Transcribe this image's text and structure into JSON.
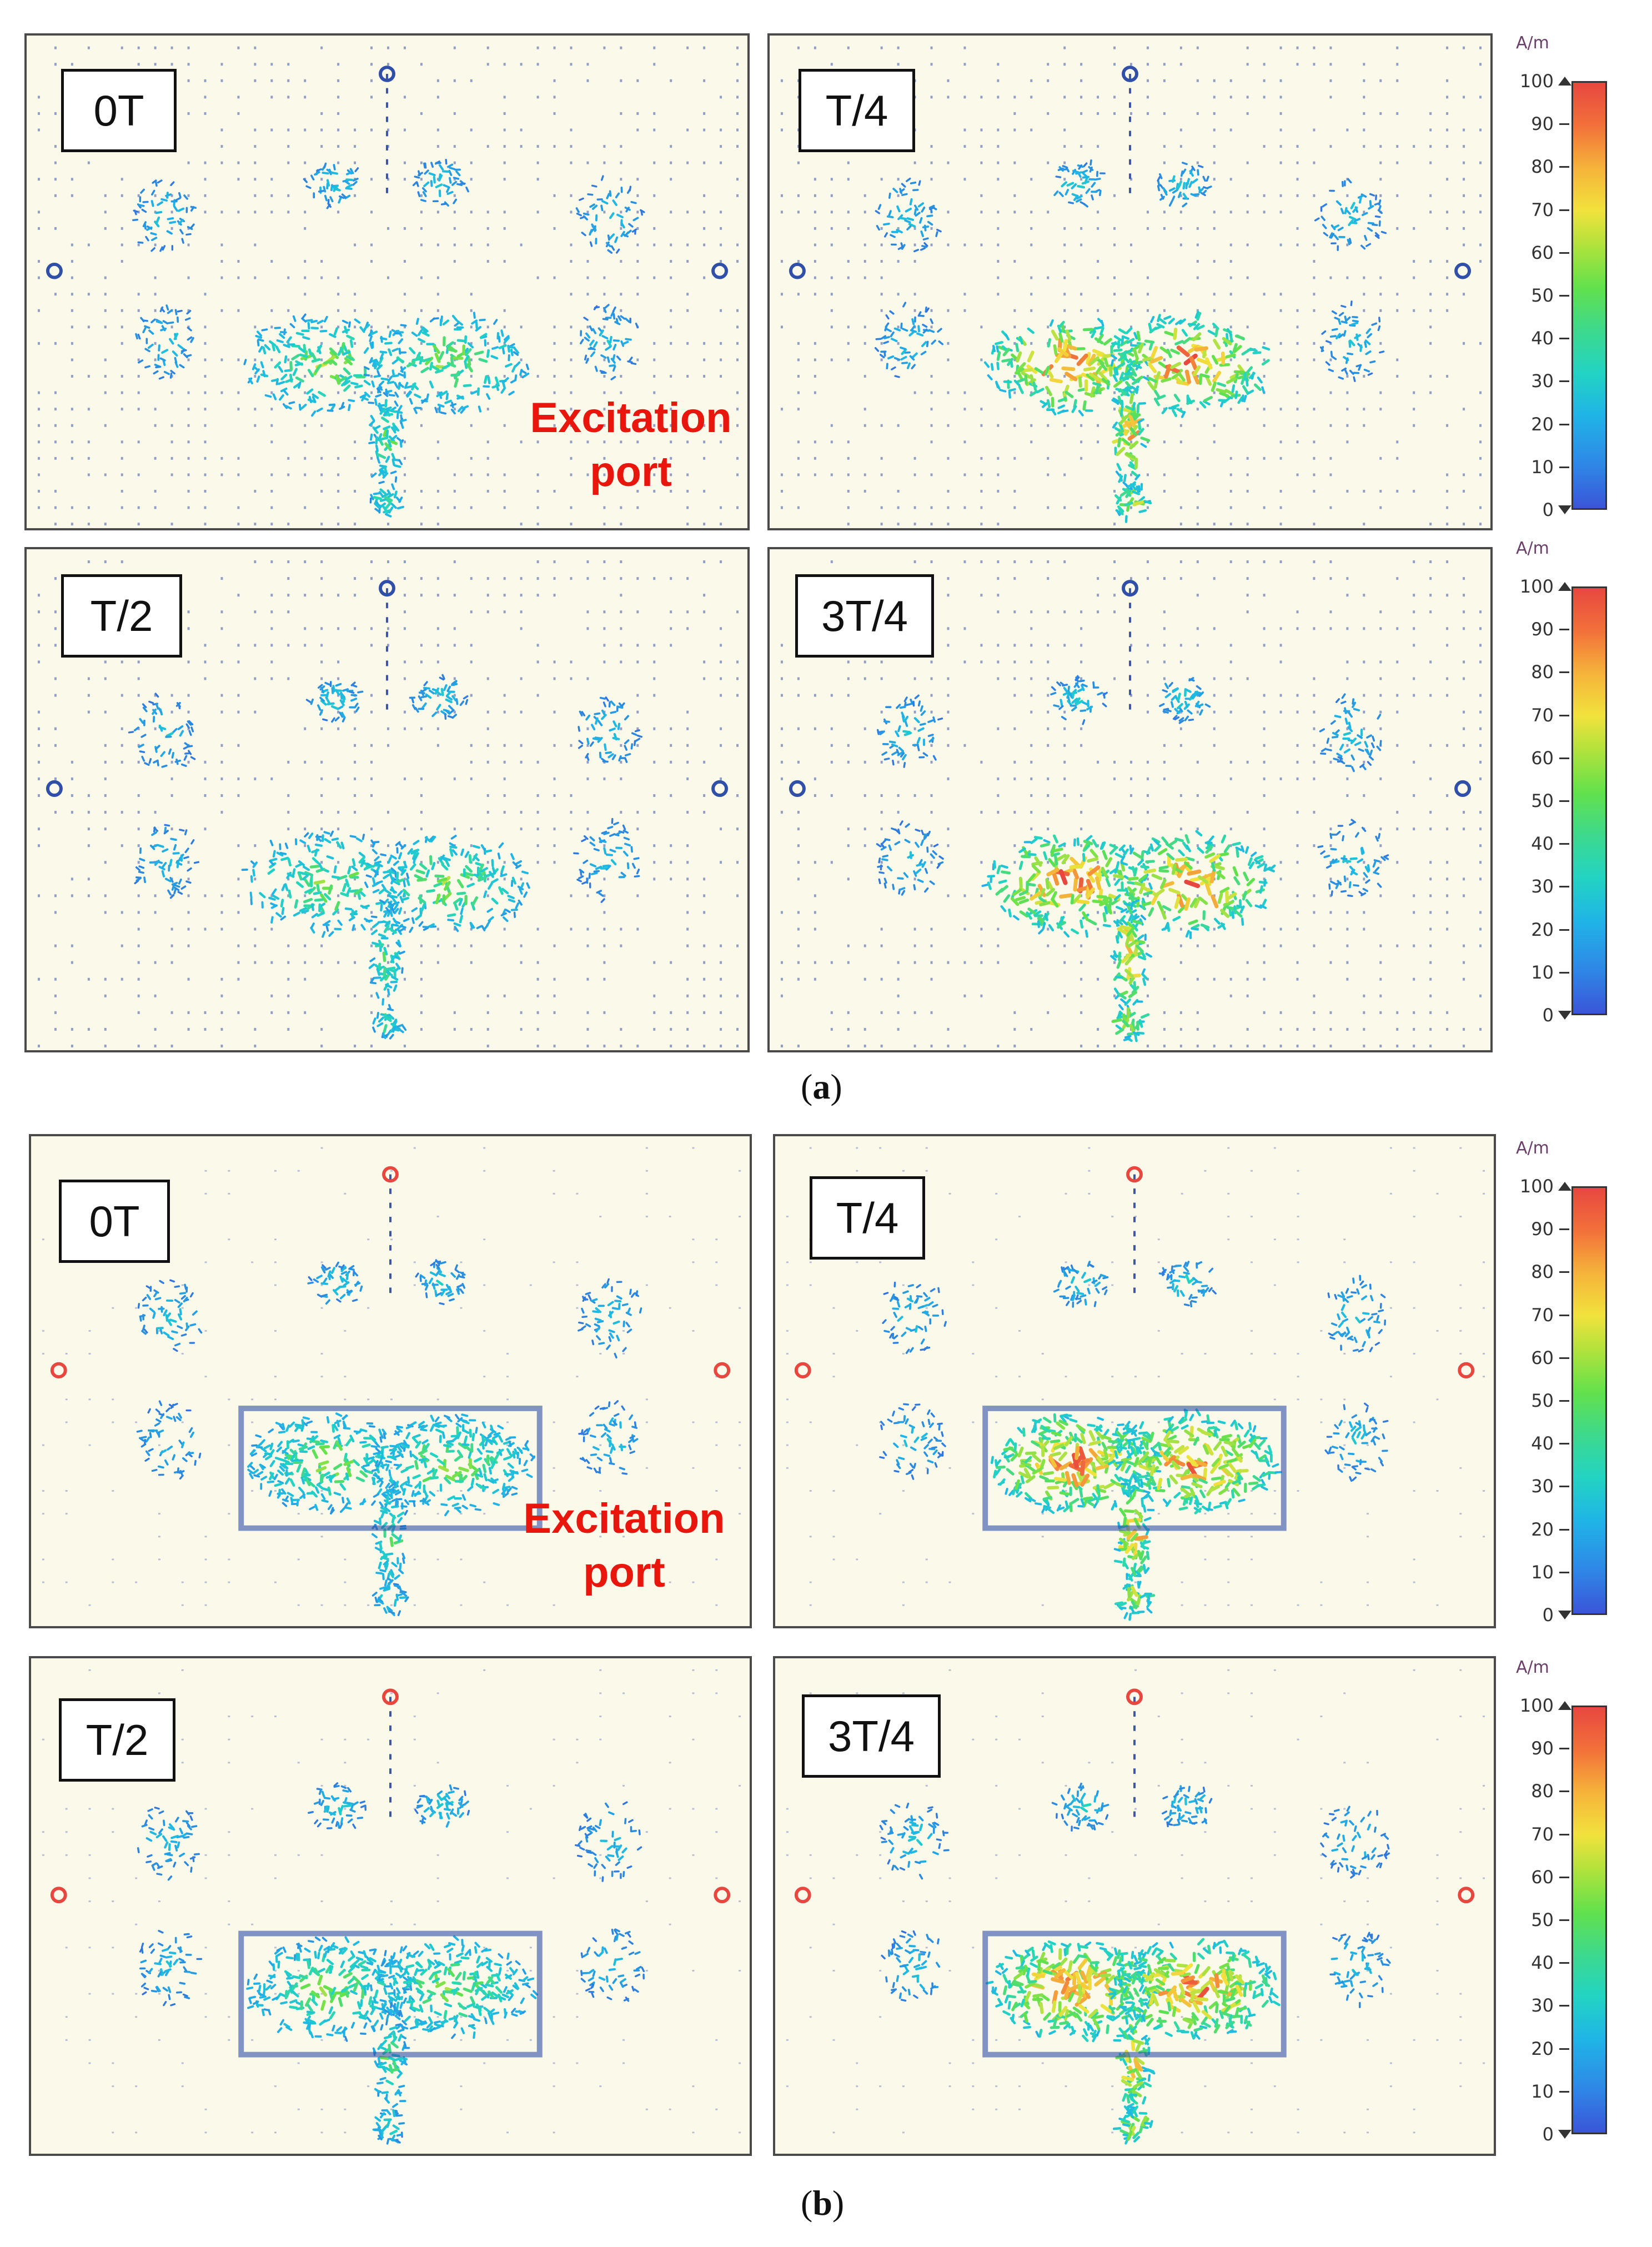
{
  "figure": {
    "colorbar": {
      "unit": "A/m",
      "ticks": [
        "100",
        "90",
        "80",
        "70",
        "60",
        "50",
        "40",
        "30",
        "20",
        "10",
        "0"
      ],
      "min": 0,
      "max": 100
    },
    "annotation": {
      "line1": "Excitation",
      "line2": "port"
    },
    "colors": {
      "background": "#fbf9ea",
      "arrow_low": "#2f4fa8",
      "arrow_high": "#e8473f",
      "annotation": "#e8160c"
    },
    "subfigures": [
      {
        "caption": {
          "open": "(",
          "letter": "a",
          "close": ")"
        },
        "panels": [
          {
            "label": "0T",
            "phase_fraction": 0.0,
            "has_annotation": true
          },
          {
            "label": "T/4",
            "phase_fraction": 0.25,
            "has_annotation": false
          },
          {
            "label": "T/2",
            "phase_fraction": 0.5,
            "has_annotation": false
          },
          {
            "label": "3T/4",
            "phase_fraction": 0.75,
            "has_annotation": false
          }
        ]
      },
      {
        "caption": {
          "open": "(",
          "letter": "b",
          "close": ")"
        },
        "panels": [
          {
            "label": "0T",
            "phase_fraction": 0.0,
            "has_annotation": true
          },
          {
            "label": "T/4",
            "phase_fraction": 0.25,
            "has_annotation": false
          },
          {
            "label": "T/2",
            "phase_fraction": 0.5,
            "has_annotation": false
          },
          {
            "label": "3T/4",
            "phase_fraction": 0.75,
            "has_annotation": false
          }
        ]
      }
    ]
  }
}
